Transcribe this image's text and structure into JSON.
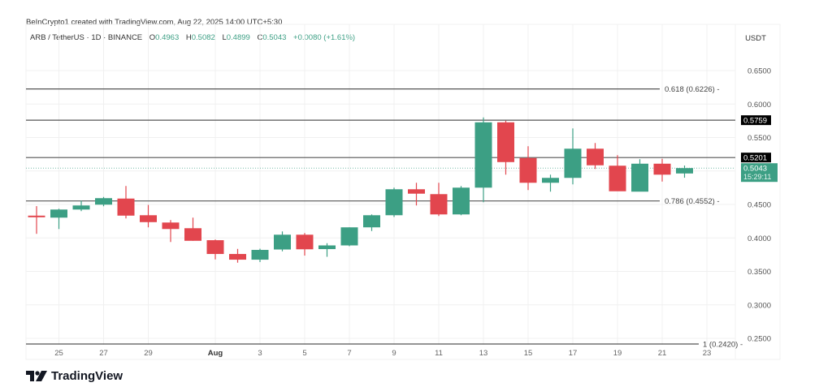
{
  "header": {
    "credit": "BeInCrypto1 created with TradingView.com, Aug 22, 2025 14:00 UTC+5:30",
    "symbol": "ARB / TetherUS · 1D · BINANCE",
    "open_label": "O",
    "open": "0.4963",
    "high_label": "H",
    "high": "0.5082",
    "low_label": "L",
    "low": "0.4899",
    "close_label": "C",
    "close": "0.5043",
    "change": "+0.0080 (+1.61%)"
  },
  "axis": {
    "currency": "USDT",
    "price_ticks": [
      "0.6500",
      "0.6000",
      "0.5500",
      "0.5000",
      "0.4500",
      "0.4000",
      "0.3500",
      "0.3000",
      "0.2500"
    ],
    "date_ticks": [
      "25",
      "27",
      "29",
      "Aug",
      "3",
      "5",
      "7",
      "9",
      "11",
      "13",
      "15",
      "17",
      "19",
      "21",
      "23"
    ]
  },
  "levels": {
    "fib_618": "0.618 (0.6226)",
    "fib_786": "0.786 (0.4552)",
    "fib_1": "1 (0.2420)",
    "resistance_1": "0.5759",
    "resistance_2": "0.5201",
    "last_price": "0.5043",
    "countdown": "15:29:11"
  },
  "colors": {
    "up": "#3c9f84",
    "down": "#e2464e",
    "level_line": "#555555",
    "grid": "#f0f0f0",
    "price_tag_bg": "#000000",
    "last_price_bg": "#3c9f84"
  },
  "brand": {
    "name": "TradingView"
  },
  "chart_data": {
    "type": "candlestick",
    "title": "ARB / TetherUS · 1D · BINANCE",
    "xlabel": "",
    "ylabel": "USDT",
    "ylim": [
      0.242,
      0.674
    ],
    "grid": true,
    "dates": [
      "Jul 24",
      "Jul 25",
      "Jul 26",
      "Jul 27",
      "Jul 28",
      "Jul 29",
      "Jul 30",
      "Jul 31",
      "Aug 1",
      "Aug 2",
      "Aug 3",
      "Aug 4",
      "Aug 5",
      "Aug 6",
      "Aug 7",
      "Aug 8",
      "Aug 9",
      "Aug 10",
      "Aug 11",
      "Aug 12",
      "Aug 13",
      "Aug 14",
      "Aug 15",
      "Aug 16",
      "Aug 17",
      "Aug 18",
      "Aug 19",
      "Aug 20",
      "Aug 21",
      "Aug 22"
    ],
    "open": [
      0.4333,
      0.4303,
      0.4424,
      0.4497,
      0.4588,
      0.4339,
      0.423,
      0.4145,
      0.3966,
      0.376,
      0.3675,
      0.3827,
      0.4048,
      0.3833,
      0.3888,
      0.4158,
      0.4339,
      0.4727,
      0.4654,
      0.4351,
      0.4751,
      0.5727,
      0.5194,
      0.4824,
      0.4897,
      0.5333,
      0.5079,
      0.4691,
      0.5109,
      0.4963
    ],
    "high": [
      0.4475,
      0.4436,
      0.4557,
      0.4612,
      0.4776,
      0.4493,
      0.4267,
      0.4303,
      0.3976,
      0.3836,
      0.3839,
      0.4097,
      0.4073,
      0.3921,
      0.4158,
      0.4351,
      0.4751,
      0.4824,
      0.4824,
      0.4775,
      0.58,
      0.5752,
      0.537,
      0.4945,
      0.5636,
      0.5418,
      0.5236,
      0.5176,
      0.5182,
      0.5082
    ],
    "low": [
      0.4061,
      0.4133,
      0.44,
      0.4473,
      0.4291,
      0.4158,
      0.3939,
      0.3957,
      0.3679,
      0.363,
      0.3639,
      0.38,
      0.3736,
      0.3718,
      0.3876,
      0.4103,
      0.4313,
      0.4485,
      0.4327,
      0.4339,
      0.4533,
      0.4945,
      0.4715,
      0.4691,
      0.48,
      0.503,
      0.4757,
      0.4697,
      0.4842,
      0.4899
    ],
    "close": [
      0.4327,
      0.4424,
      0.4485,
      0.4594,
      0.4333,
      0.4236,
      0.4133,
      0.3957,
      0.376,
      0.3675,
      0.3821,
      0.4048,
      0.383,
      0.3888,
      0.4158,
      0.4339,
      0.4727,
      0.4661,
      0.4351,
      0.4751,
      0.5727,
      0.5133,
      0.4824,
      0.4897,
      0.5333,
      0.5085,
      0.4697,
      0.5109,
      0.4945,
      0.5043
    ],
    "horizontal_levels": [
      {
        "label": "0.618 (0.6226)",
        "value": 0.6226
      },
      {
        "label": "0.5759",
        "value": 0.5759
      },
      {
        "label": "0.5201",
        "value": 0.5201
      },
      {
        "label": "0.786 (0.4552)",
        "value": 0.4552
      },
      {
        "label": "1 (0.2420)",
        "value": 0.242
      }
    ],
    "last_price": 0.5043
  }
}
